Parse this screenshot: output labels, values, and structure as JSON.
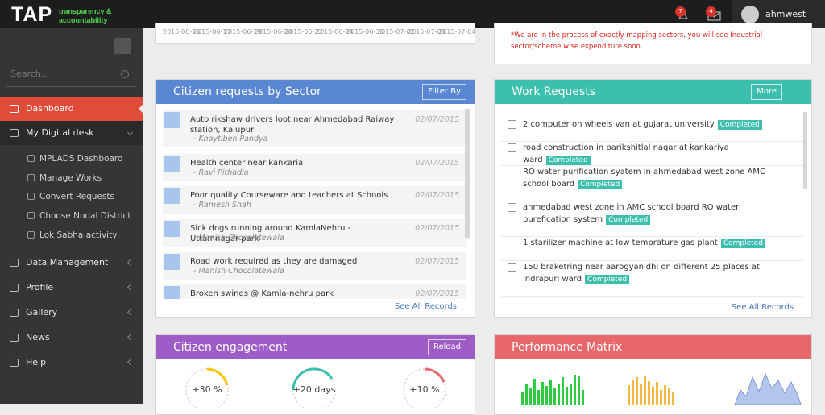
{
  "topbar": {
    "logo": "TAP",
    "tagline_1": "transparency &",
    "tagline_2": "accountability",
    "notifications": "7",
    "messages": "4",
    "user": "ahmwest"
  },
  "sidebar": {
    "search_placeholder": "Search...",
    "menu": [
      "Dashboard",
      "My Digital desk",
      "Data Management",
      "Profile",
      "Gallery",
      "News",
      "Help"
    ],
    "submenu": [
      "MPLADS Dashboard",
      "Manage Works",
      "Convert Requests",
      "Choose Nodal District",
      "Lok Sabha activity"
    ]
  },
  "timeline": {
    "dates": [
      "2015-06-15",
      "2015-06-17",
      "2015-06-19",
      "2015-06-20",
      "2015-06-22",
      "2015-06-24",
      "2015-06-30",
      "2015-07-02",
      "2015-07-03",
      "2015-07-04"
    ]
  },
  "notice": "*We are in the process of exactly mapping sectors, you will see Industrial sector/scheme wise expenditure soon.",
  "citizen_requests": {
    "title": "Citizen requests by Sector",
    "filter": "Filter By",
    "see_all": "See All Records",
    "items": [
      {
        "title": "Auto rikshaw drivers loot near Ahmedabad Raiway station, Kalupur",
        "date": "02/07/2015",
        "author": "- Khaytiben Pandya"
      },
      {
        "title": "Health center near kankaria",
        "date": "02/07/2015",
        "author": "- Ravi Pithadia"
      },
      {
        "title": "Poor quality Courseware and teachers at Schools",
        "date": "02/07/2015",
        "author": "- Ramesh Shah"
      },
      {
        "title": "Sick dogs running around KamlaNehru - Uttamnagar park",
        "date": "02/07/2015",
        "author": "- Manish Chocolatewala"
      },
      {
        "title": "Road work required as they are damaged",
        "date": "02/07/2015",
        "author": "- Manish Chocolatewala"
      },
      {
        "title": "Broken swings @ Kamla-nehru park",
        "date": "02/07/2015"
      }
    ]
  },
  "work_requests": {
    "title": "Work Requests",
    "more": "More",
    "see_all": "See All Records",
    "items": [
      {
        "title": "2 computer on wheels van at gujarat university",
        "status": "Completed"
      },
      {
        "title": "road construction in parikshitlal nagar at kankariya ward",
        "status": "Completed"
      },
      {
        "title": "RO water purification syatem in ahmedabad west zone AMC school board",
        "status": "Completed"
      },
      {
        "title": "ahmedabad west zone in AMC school board RO water purefication system",
        "status": "Completed"
      },
      {
        "title": "1 starilizer machine at low temprature gas plant",
        "status": "Completed"
      },
      {
        "title": "150 braketring near aarogyanidhi on different 25 places at indrapuri ward",
        "status": "Completed"
      }
    ]
  },
  "citizen_engagement": {
    "title": "Citizen engagement",
    "reload": "Reload",
    "gauges": [
      "+30 %",
      "+20 days",
      "+10 %"
    ]
  },
  "performance_matrix": {
    "title": "Performance Matrix"
  }
}
